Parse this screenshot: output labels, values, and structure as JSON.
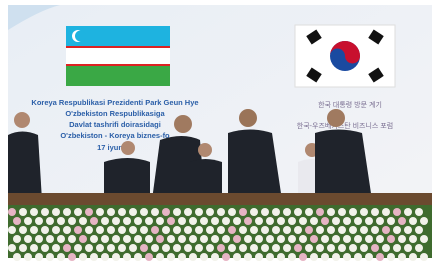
{
  "banner": {
    "left_lines": [
      "Koreya Respublikasi Prezidenti Park Geun Hye",
      "O'zbekiston Respublikasiga",
      "Davlat tashrifi doirasidagi",
      "O'zbekiston - Koreya biznes-fo"
    ],
    "date": "17 iyun",
    "right_lines": [
      "한국 대통령 방문 계기",
      "한국-우즈베키스탄 비즈니스 포럼"
    ]
  }
}
